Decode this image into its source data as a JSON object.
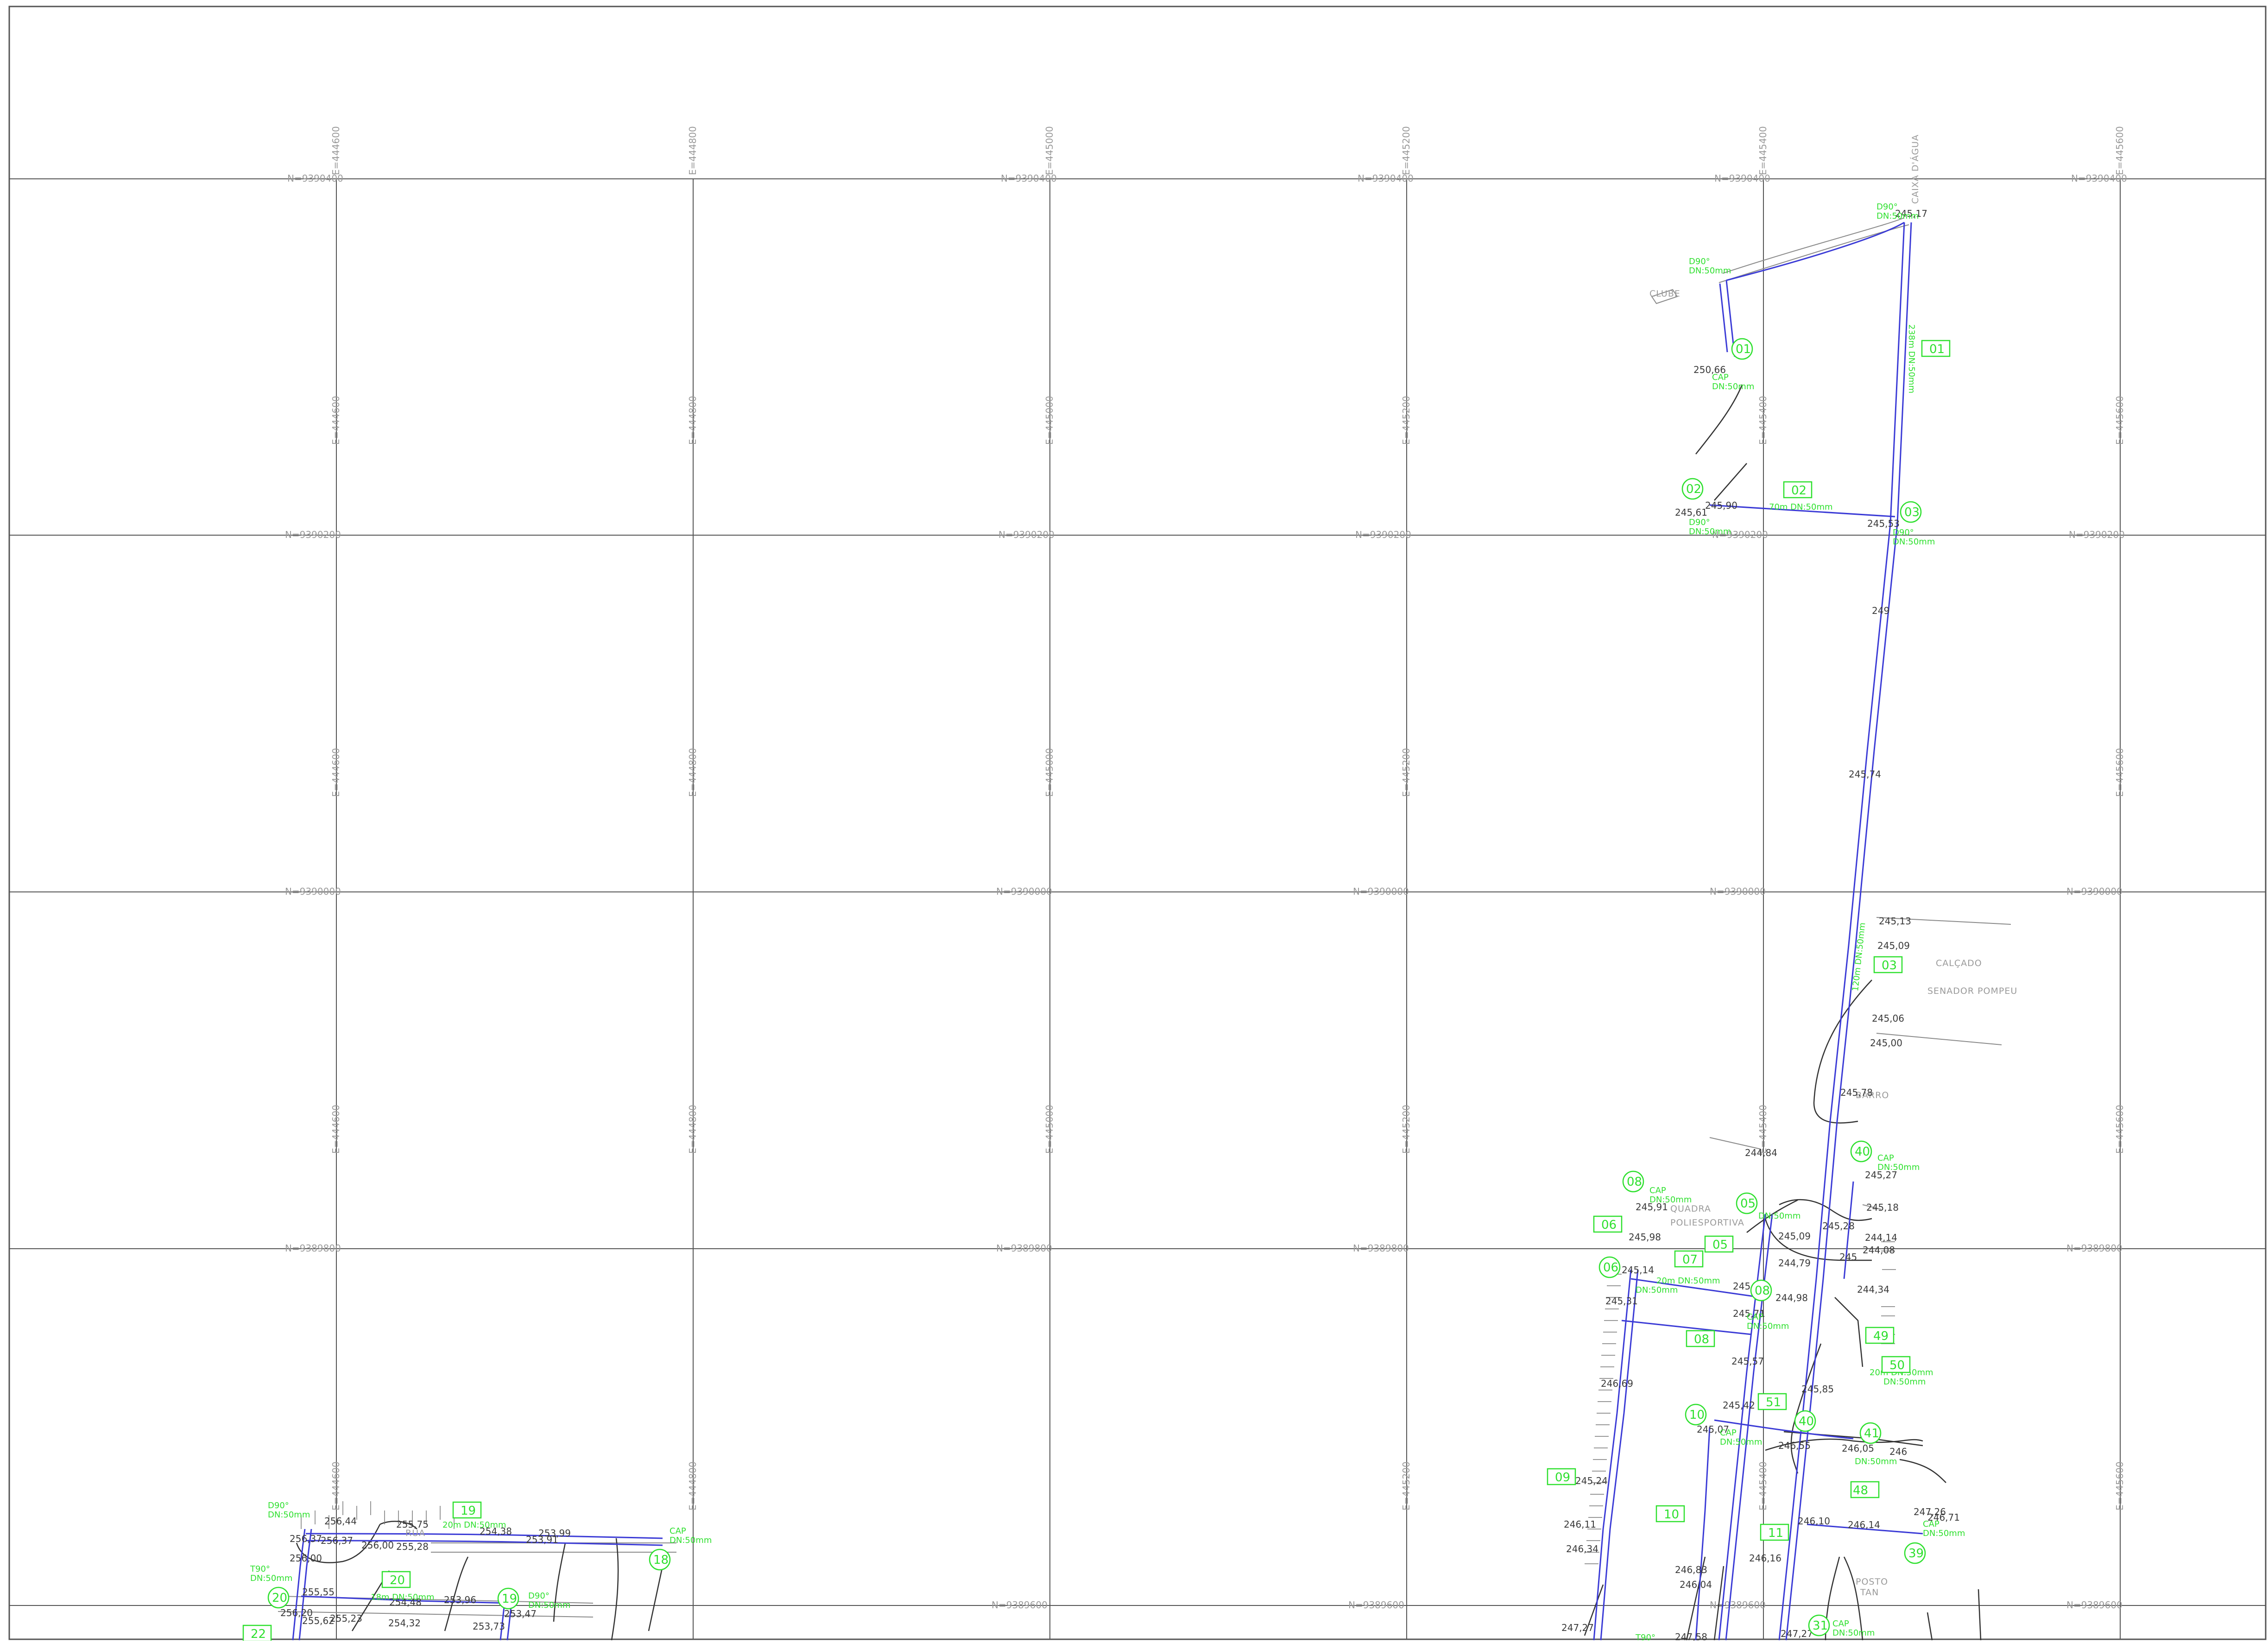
{
  "drawing": {
    "grid_labels": {
      "easting_top": [
        "E=444600",
        "E=444800",
        "E=445000",
        "E=445200",
        "E=445400",
        "E=445600"
      ],
      "northing": [
        "N=9390400",
        "N=9390200",
        "N=9390000",
        "N=9389800",
        "N=9389600"
      ]
    },
    "place_labels": [
      "CLUBE",
      "CALÇADO",
      "SENADOR POMPEU",
      "QUADRA",
      "POLIESPORTIVA",
      "POSTO",
      "TAN",
      "CAIXA D'ÁGUA",
      "BARRO",
      "RUA"
    ],
    "elevations": [
      "250,66",
      "245,90",
      "245,61",
      "245,17",
      "245,53",
      "249",
      "245,74",
      "245,13",
      "245,09",
      "245,06",
      "245,00",
      "245,78",
      "244,84",
      "245,27",
      "245,18",
      "245,28",
      "245,09",
      "244,79",
      "244,98",
      "244,14",
      "244,08",
      "244,34",
      "245,91",
      "245,98",
      "245,14",
      "245,31",
      "245,98",
      "245,71",
      "245,57",
      "246,69",
      "245,42",
      "246,55",
      "245,07",
      "245,24",
      "245,85",
      "246,05",
      "246,14",
      "246,10",
      "247,26",
      "246,71",
      "246,11",
      "246,34",
      "246,83",
      "246,04",
      "246,16",
      "247,58",
      "247,27",
      "247,27",
      "256,44",
      "255,75",
      "256,37",
      "256,37",
      "256,00",
      "256,00",
      "255,28",
      "254,38",
      "253,99",
      "253,91",
      "255,55",
      "254,48",
      "253,96",
      "254,32",
      "253,73",
      "253,47",
      "255,62",
      "255,23",
      "256,20",
      "246",
      "245"
    ],
    "node_ids": [
      "01",
      "02",
      "03",
      "04",
      "05",
      "06",
      "07",
      "08",
      "09",
      "10",
      "11",
      "17",
      "18",
      "19",
      "20",
      "22",
      "31",
      "39",
      "40",
      "41",
      "48",
      "49",
      "50",
      "51"
    ],
    "fitting_labels": {
      "cap": "CAP",
      "dn50": "DN:50mm",
      "elbow": "D90°",
      "tee": "T90°",
      "tee_cap": "T90° DN:50mm",
      "pipe_len_1": "238m DN:50mm",
      "pipe_len_2": "70m DN:50mm",
      "pipe_len_3": "120m DN:50mm",
      "pipe_len_4": "20m DN:50mm",
      "pipe_len_5": "18m DN:50mm"
    },
    "colors": {
      "pipe": "#3b3bd6",
      "annotation": "#2ee02e",
      "grid": "#555555",
      "text": "#3a3a3a"
    }
  }
}
